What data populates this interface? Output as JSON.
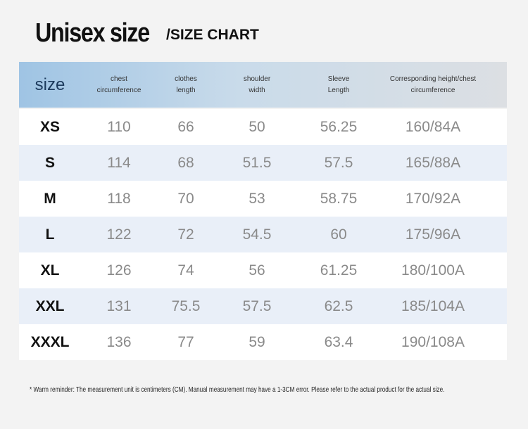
{
  "header": {
    "title": "Unisex size",
    "subtitle": "/SIZE CHART"
  },
  "table": {
    "columns": [
      "size",
      "chest circumference",
      "clothes length",
      "shoulder width",
      "Sleeve Length",
      "Corresponding height/chest circumference"
    ],
    "rows": [
      [
        "XS",
        "110",
        "66",
        "50",
        "56.25",
        "160/84A"
      ],
      [
        "S",
        "114",
        "68",
        "51.5",
        "57.5",
        "165/88A"
      ],
      [
        "M",
        "118",
        "70",
        "53",
        "58.75",
        "170/92A"
      ],
      [
        "L",
        "122",
        "72",
        "54.5",
        "60",
        "175/96A"
      ],
      [
        "XL",
        "126",
        "74",
        "56",
        "61.25",
        "180/100A"
      ],
      [
        "XXL",
        "131",
        "75.5",
        "57.5",
        "62.5",
        "185/104A"
      ],
      [
        "XXXL",
        "136",
        "77",
        "59",
        "63.4",
        "190/108A"
      ]
    ]
  },
  "footnote": "* Warm reminder: The measurement unit is centimeters (CM). Manual measurement may have a 1-3CM error. Please refer to the actual product for the actual size."
}
